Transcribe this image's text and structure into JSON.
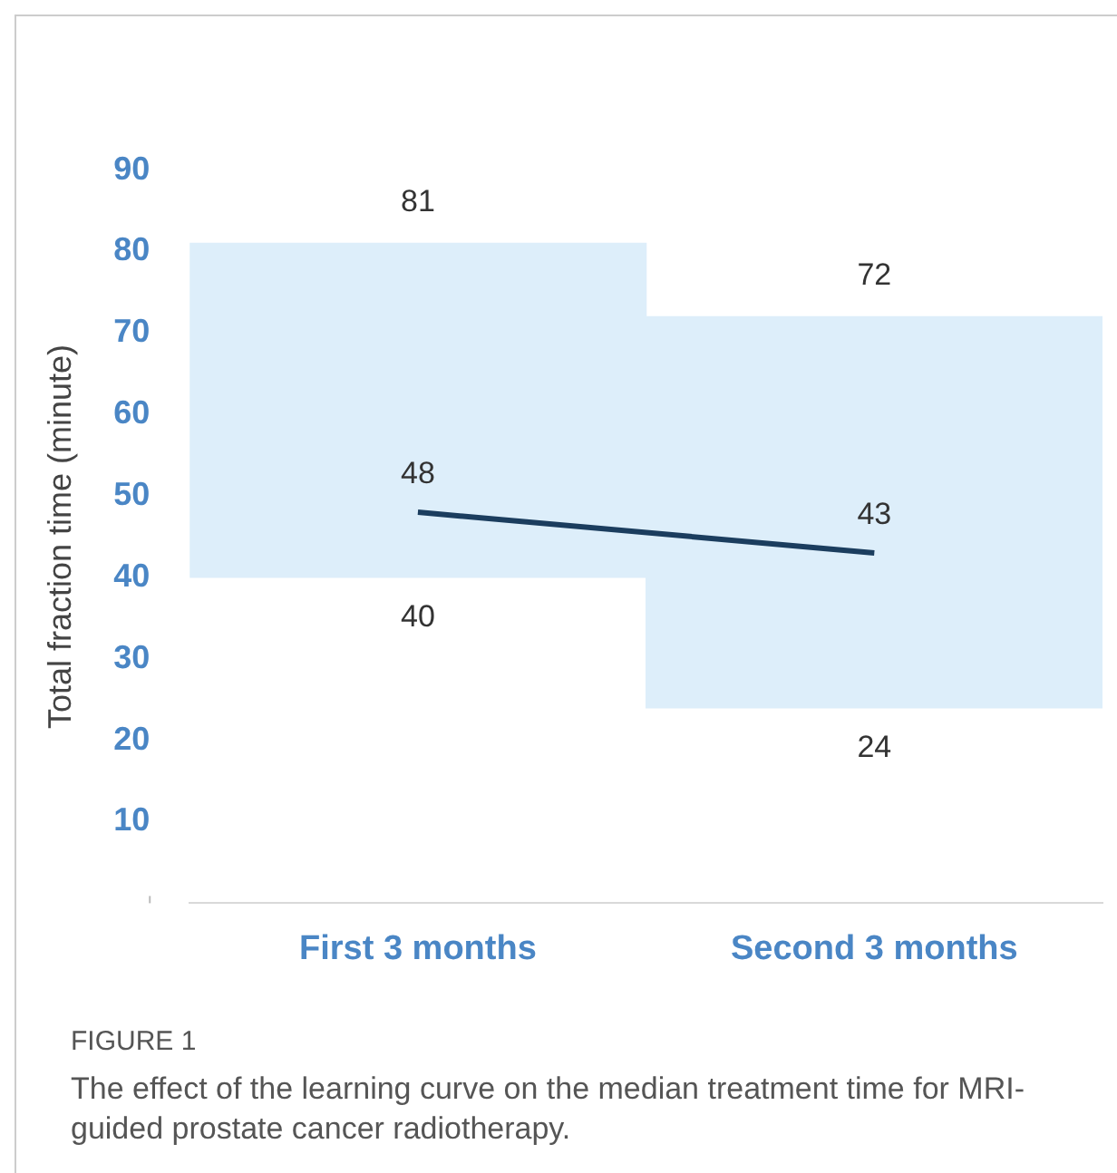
{
  "chart_data": {
    "type": "bar",
    "ylabel": "Total fraction time (minute)",
    "categories": [
      "First 3 months",
      "Second 3 months"
    ],
    "series": [
      {
        "color": "#ddeefa",
        "base": [
          40,
          24
        ],
        "values": [
          41,
          48
        ]
      },
      {
        "type": "line",
        "color": "#1b3d5e",
        "values": [
          48,
          43
        ],
        "value_labels": [
          "48",
          "43"
        ]
      }
    ],
    "ylim": [
      0,
      90
    ],
    "yticks": [
      {
        "value": 0,
        "label": null
      },
      10,
      20,
      30,
      40,
      50,
      60,
      70,
      80,
      90
    ],
    "grid": false,
    "legend": false,
    "marker": "none",
    "annotations": [
      {
        "text": "81",
        "x": "First 3 months",
        "y": 81
      },
      {
        "text": "40",
        "x": "First 3 months",
        "y": 40
      },
      {
        "text": "72",
        "x": "Second 3 months",
        "y": 72
      },
      {
        "text": "24",
        "x": "Second 3 months",
        "y": 24
      },
      "FIGURE 1",
      "The effect of the learning curve on the median treatment time for MRI-guided prostate cancer radiotherapy."
    ]
  }
}
